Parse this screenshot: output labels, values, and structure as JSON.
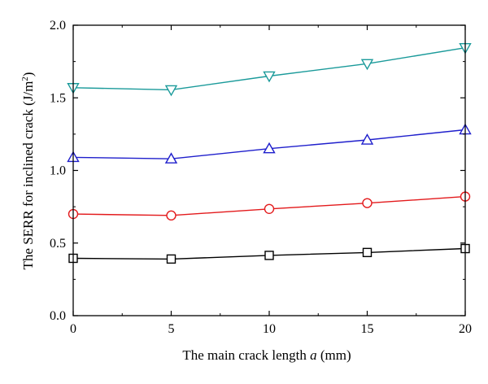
{
  "chart_data": {
    "type": "line",
    "x": [
      0,
      5,
      10,
      15,
      20
    ],
    "xlim": [
      0,
      20
    ],
    "ylim": [
      0.0,
      2.0
    ],
    "x_ticks": [
      "0",
      "5",
      "10",
      "15",
      "20"
    ],
    "y_ticks": [
      "0.0",
      "0.5",
      "1.0",
      "1.5",
      "2.0"
    ],
    "xlabel_prefix": "The main crack length ",
    "xlabel_var": "a",
    "xlabel_suffix": " (mm)",
    "ylabel_main": "The SERR for inclined crack (J/m",
    "ylabel_sup": "2",
    "ylabel_end": ")",
    "grid": false,
    "legend": "none",
    "series": [
      {
        "marker": "square",
        "color": "#000000",
        "values": [
          0.395,
          0.39,
          0.415,
          0.435,
          0.462
        ]
      },
      {
        "marker": "circle",
        "color": "#e31a1c",
        "values": [
          0.7,
          0.69,
          0.735,
          0.775,
          0.82
        ]
      },
      {
        "marker": "triangle-up",
        "color": "#1f1fcc",
        "values": [
          1.09,
          1.08,
          1.15,
          1.21,
          1.28
        ]
      },
      {
        "marker": "triangle-down",
        "color": "#1a9a9a",
        "values": [
          1.57,
          1.555,
          1.65,
          1.735,
          1.845
        ]
      }
    ]
  }
}
